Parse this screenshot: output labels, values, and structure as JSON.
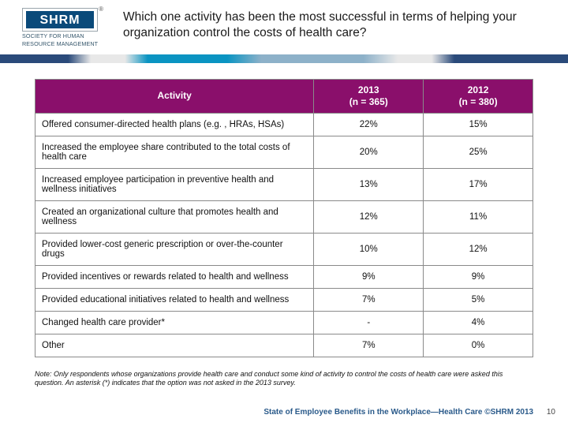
{
  "header": {
    "logo": {
      "text": "SHRM",
      "registered": "®",
      "subline1": "SOCIETY FOR HUMAN",
      "subline2": "RESOURCE MANAGEMENT",
      "box_fill": "#0a4a7a"
    },
    "title": "Which one activity has been the most successful in terms of helping your organization control the costs of health care?"
  },
  "gradient_colors": [
    "#2a4a7a",
    "#e8e8e8",
    "#0a94c2",
    "#8db1c9"
  ],
  "table": {
    "header_bg": "#8a0f6b",
    "header_fg": "#ffffff",
    "border_color": "#8a8a8a",
    "columns": [
      {
        "label": "Activity"
      },
      {
        "label_line1": "2013",
        "label_line2": "(n = 365)"
      },
      {
        "label_line1": "2012",
        "label_line2": "(n = 380)"
      }
    ],
    "rows": [
      {
        "activity": "Offered consumer-directed health plans (e.g. , HRAs, HSAs)",
        "y2013": "22%",
        "y2012": "15%"
      },
      {
        "activity": "Increased the employee share contributed to the total costs of health care",
        "y2013": "20%",
        "y2012": "25%"
      },
      {
        "activity": "Increased employee participation in preventive health and wellness initiatives",
        "y2013": "13%",
        "y2012": "17%"
      },
      {
        "activity": "Created an organizational culture that promotes health and wellness",
        "y2013": "12%",
        "y2012": "11%"
      },
      {
        "activity": "Provided lower-cost generic prescription or over-the-counter drugs",
        "y2013": "10%",
        "y2012": "12%"
      },
      {
        "activity": "Provided incentives or rewards related to health and wellness",
        "y2013": "9%",
        "y2012": "9%"
      },
      {
        "activity": "Provided educational initiatives related to health and wellness",
        "y2013": "7%",
        "y2012": "5%"
      },
      {
        "activity": "Changed health care provider*",
        "y2013": "-",
        "y2012": "4%"
      },
      {
        "activity": "Other",
        "y2013": "7%",
        "y2012": "0%"
      }
    ]
  },
  "footnote": "Note: Only respondents whose organizations provide health care and conduct some kind of activity to control the costs of health care were asked this question. An asterisk (*) indicates that the option was not asked in the 2013 survey.",
  "footer": {
    "text": "State of Employee Benefits in the Workplace—Health Care ©SHRM 2013",
    "page": "10",
    "color": "#2a5a8a"
  }
}
